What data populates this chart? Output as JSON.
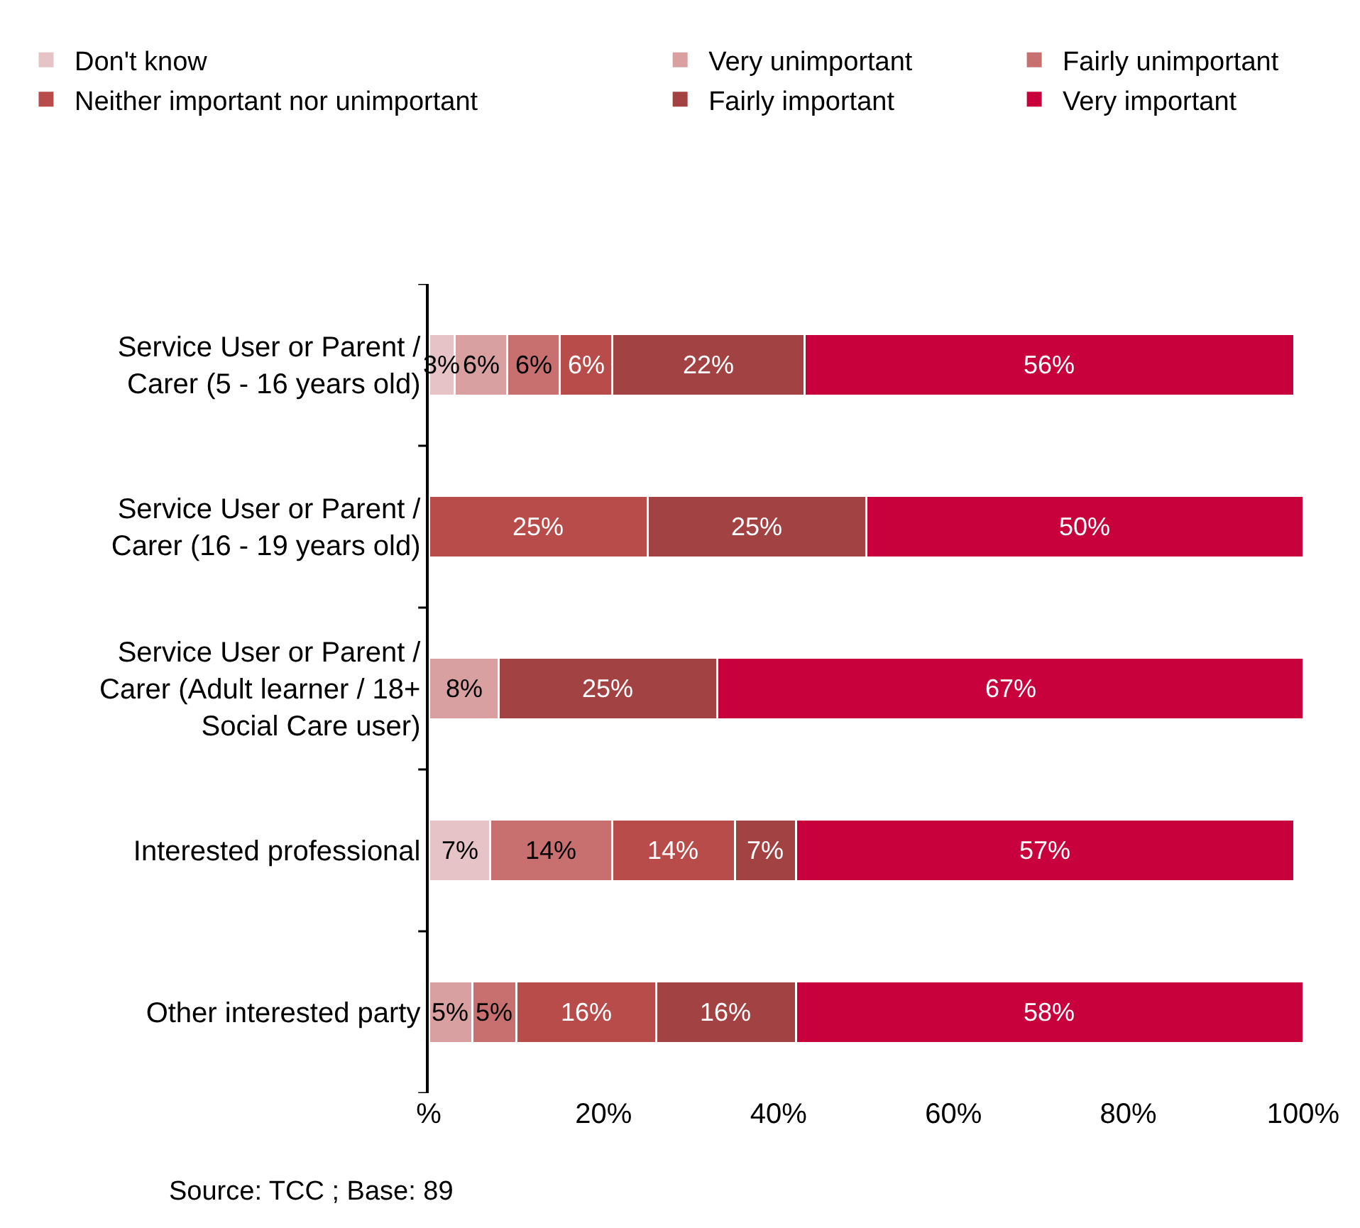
{
  "chart_data": {
    "type": "bar",
    "orientation": "horizontal",
    "stacked": true,
    "categories": [
      "Service User or Parent / Carer (5 - 16 years old)",
      "Service User or Parent / Carer (16 - 19 years old)",
      "Service User or Parent / Carer (Adult learner / 18+ Social Care user)",
      "Interested professional",
      "Other interested party"
    ],
    "series": [
      {
        "name": "Don't know",
        "color": "#e6c3c6",
        "values": [
          3,
          null,
          null,
          7,
          null
        ],
        "value_labels": [
          "3%",
          null,
          null,
          "7%",
          null
        ]
      },
      {
        "name": "Very unimportant",
        "color": "#d9a0a2",
        "values": [
          6,
          null,
          8,
          null,
          5
        ],
        "value_labels": [
          "6%",
          null,
          "8%",
          null,
          "5%"
        ]
      },
      {
        "name": "Fairly unimportant",
        "color": "#c87070",
        "values": [
          6,
          null,
          null,
          14,
          5
        ],
        "value_labels": [
          "6%",
          null,
          null,
          "14%",
          "5%"
        ]
      },
      {
        "name": "Neither important nor unimportant",
        "color": "#b84c4a",
        "values": [
          6,
          25,
          null,
          14,
          16
        ],
        "value_labels": [
          "6%",
          "25%",
          null,
          "14%",
          "16%"
        ]
      },
      {
        "name": "Fairly important",
        "color": "#a34242",
        "values": [
          22,
          25,
          25,
          7,
          16
        ],
        "value_labels": [
          "22%",
          "25%",
          "25%",
          "7%",
          "16%"
        ]
      },
      {
        "name": "Very important",
        "color": "#c8003c",
        "values": [
          56,
          50,
          67,
          57,
          58
        ],
        "value_labels": [
          "56%",
          "50%",
          "67%",
          "57%",
          "58%"
        ]
      }
    ],
    "xlim": [
      0,
      100
    ],
    "xticks": [
      {
        "value": 0,
        "label": "%"
      },
      {
        "value": 20,
        "label": "20%"
      },
      {
        "value": 40,
        "label": "40%"
      },
      {
        "value": 60,
        "label": "60%"
      },
      {
        "value": 80,
        "label": "80%"
      },
      {
        "value": 100,
        "label": "100%"
      }
    ],
    "grid": false,
    "legend": "top",
    "annotations": [
      "Source: TCC ; Base: 89"
    ]
  }
}
